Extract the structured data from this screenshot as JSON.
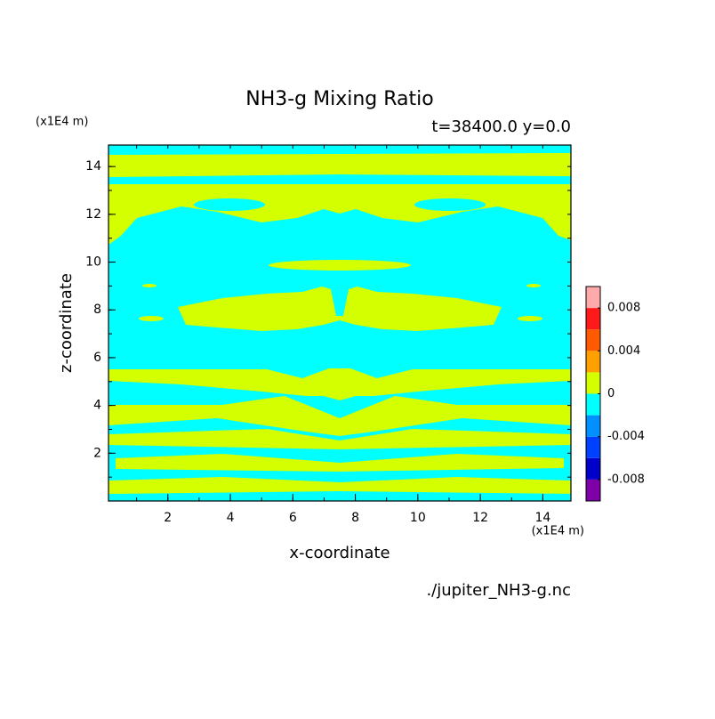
{
  "chart_data": {
    "type": "contour",
    "title": "NH3-g Mixing Ratio",
    "subtitle": "t=38400.0 y=0.0",
    "xlabel": "x-coordinate",
    "ylabel": "z-coordinate",
    "x_unit": "(x1E4 m)",
    "y_unit": "(x1E4 m)",
    "source": "./jupiter_NH3-g.nc",
    "xlim": [
      0.1,
      14.9
    ],
    "ylim": [
      0,
      14.9
    ],
    "xticks": [
      2,
      4,
      6,
      8,
      10,
      12,
      14
    ],
    "yticks": [
      2,
      4,
      6,
      8,
      10,
      12,
      14
    ],
    "xminorticks": [
      1,
      2,
      3,
      4,
      5,
      6,
      7,
      8,
      9,
      10,
      11,
      12,
      13,
      14
    ],
    "yminorticks": [
      1,
      2,
      3,
      4,
      5,
      6,
      7,
      8,
      9,
      10,
      11,
      12,
      13,
      14
    ],
    "levels": [
      -0.01,
      -0.008,
      -0.006,
      -0.004,
      -0.002,
      0,
      0.002,
      0.004,
      0.006,
      0.008,
      0.01
    ],
    "level_colors": [
      "#8000a8",
      "#0000c8",
      "#0040ff",
      "#0090ff",
      "#00ffff",
      "#d4ff00",
      "#ffa000",
      "#ff5a00",
      "#ff1a1a",
      "#ffaaaa"
    ],
    "colorbar_ticks": [
      -0.008,
      -0.004,
      0,
      0.004,
      0.008
    ]
  }
}
